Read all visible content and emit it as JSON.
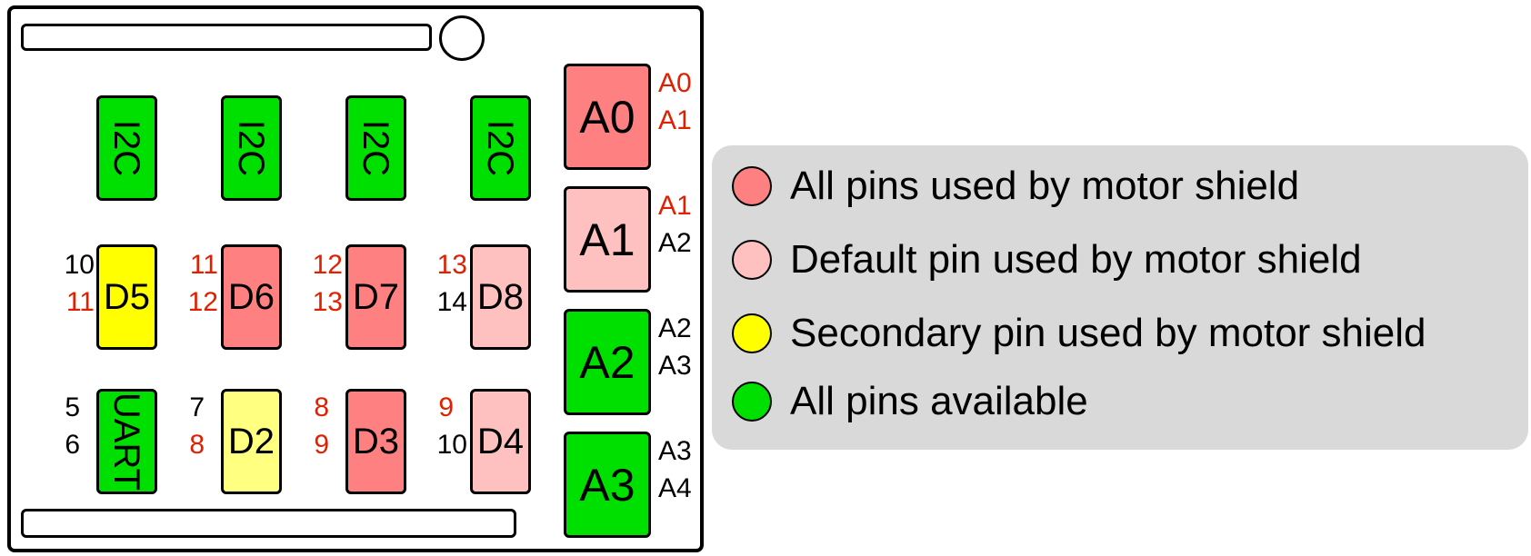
{
  "colors": {
    "all_used": "#ff8080",
    "default_used": "#ffc0c0",
    "secondary_used": "#ffff00",
    "secondary_light": "#ffff80",
    "available": "#00e000",
    "pin_used": "#e02000",
    "pin_free": "#000000"
  },
  "modules": {
    "i2c_1": "I2C",
    "i2c_2": "I2C",
    "i2c_3": "I2C",
    "i2c_4": "I2C",
    "d5": "D5",
    "d6": "D6",
    "d7": "D7",
    "d8": "D8",
    "uart": "UART",
    "d2": "D2",
    "d3": "D3",
    "d4": "D4",
    "a0": "A0",
    "a1": "A1",
    "a2": "A2",
    "a3": "A3"
  },
  "pins": {
    "d5": [
      "10",
      "11"
    ],
    "d6": [
      "11",
      "12"
    ],
    "d7": [
      "12",
      "13"
    ],
    "d8": [
      "13",
      "14"
    ],
    "uart": [
      "5",
      "6"
    ],
    "d2": [
      "7",
      "8"
    ],
    "d3": [
      "8",
      "9"
    ],
    "d4": [
      "9",
      "10"
    ],
    "a0": [
      "A0",
      "A1"
    ],
    "a1": [
      "A1",
      "A2"
    ],
    "a2": [
      "A2",
      "A3"
    ],
    "a3": [
      "A3",
      "A4"
    ]
  },
  "legend": [
    {
      "label": "All pins used by motor shield",
      "color": "#ff8080"
    },
    {
      "label": "Default pin used by motor shield",
      "color": "#ffc0c0"
    },
    {
      "label": "Secondary pin used by motor shield",
      "color": "#ffff00"
    },
    {
      "label": "All pins available",
      "color": "#00e000"
    }
  ]
}
